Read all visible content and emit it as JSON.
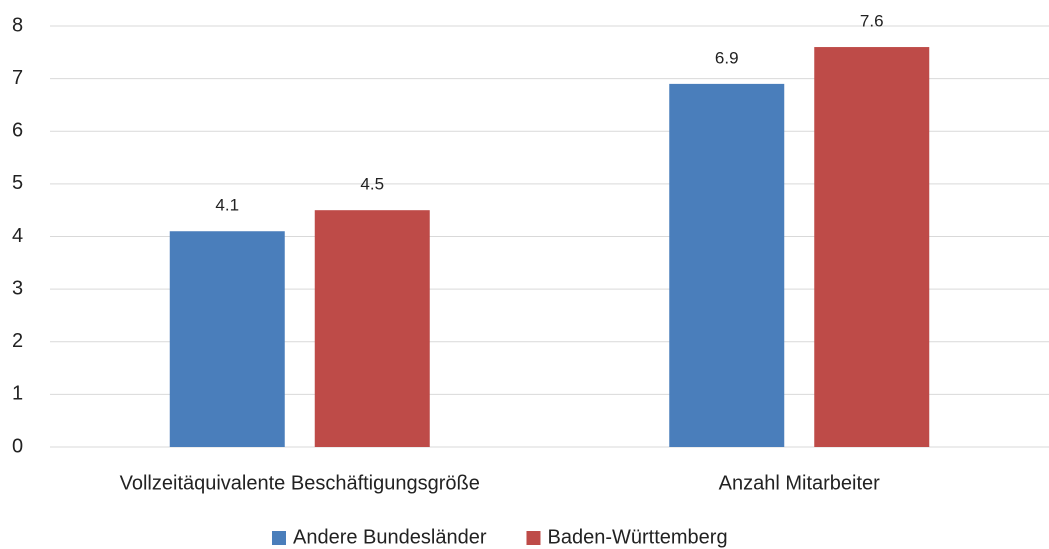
{
  "chart_data": {
    "type": "bar",
    "categories": [
      "Vollzeitäquivalente Beschäftigungsgröße",
      "Anzahl Mitarbeiter"
    ],
    "series": [
      {
        "name": "Andere Bundesländer",
        "color": "#4a7ebb",
        "values": [
          4.1,
          6.9
        ]
      },
      {
        "name": "Baden-Württemberg",
        "color": "#be4b48",
        "values": [
          4.5,
          7.6
        ]
      }
    ],
    "ylim": [
      0,
      8
    ],
    "yticks": [
      0,
      1,
      2,
      3,
      4,
      5,
      6,
      7,
      8
    ],
    "grid": true,
    "legend": "bottom"
  }
}
